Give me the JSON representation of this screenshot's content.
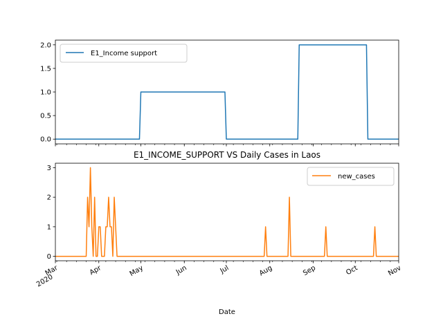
{
  "chart_data": [
    {
      "type": "line",
      "title": "",
      "xlabel": "",
      "ylabel": "",
      "x_range": [
        "2020-03-01",
        "2020-11-01"
      ],
      "ylim": [
        -0.1,
        2.1
      ],
      "yticks": [
        "0.0",
        "0.5",
        "1.0",
        "1.5",
        "2.0"
      ],
      "grid": false,
      "legend": "upper left",
      "series": [
        {
          "name": "E1_Income support",
          "color": "#1f77b4",
          "points": [
            [
              "2020-03-01",
              0
            ],
            [
              "2020-04-30",
              0
            ],
            [
              "2020-05-01",
              1
            ],
            [
              "2020-06-30",
              1
            ],
            [
              "2020-07-01",
              0
            ],
            [
              "2020-08-21",
              0
            ],
            [
              "2020-08-22",
              2
            ],
            [
              "2020-10-09",
              2
            ],
            [
              "2020-10-10",
              0
            ],
            [
              "2020-11-01",
              0
            ]
          ]
        }
      ]
    },
    {
      "type": "line",
      "title": "E1_INCOME_SUPPORT VS Daily Cases in Laos",
      "xlabel": "Date",
      "ylabel": "",
      "x_range": [
        "2020-03-01",
        "2020-11-01"
      ],
      "ylim": [
        -0.15,
        3.15
      ],
      "yticks": [
        "0",
        "1",
        "2",
        "3"
      ],
      "xticks": [
        {
          "date": "2020-03-01",
          "label": "Mar",
          "sub": "2020"
        },
        {
          "date": "2020-04-01",
          "label": "Apr",
          "sub": ""
        },
        {
          "date": "2020-05-01",
          "label": "May",
          "sub": ""
        },
        {
          "date": "2020-06-01",
          "label": "Jun",
          "sub": ""
        },
        {
          "date": "2020-07-01",
          "label": "Jul",
          "sub": ""
        },
        {
          "date": "2020-08-01",
          "label": "Aug",
          "sub": ""
        },
        {
          "date": "2020-09-01",
          "label": "Sep",
          "sub": ""
        },
        {
          "date": "2020-10-01",
          "label": "Oct",
          "sub": ""
        },
        {
          "date": "2020-11-01",
          "label": "Nov",
          "sub": ""
        }
      ],
      "grid": false,
      "legend": "upper right",
      "series": [
        {
          "name": "new_cases",
          "color": "#ff7f0e",
          "points": [
            [
              "2020-03-01",
              0
            ],
            [
              "2020-03-23",
              0
            ],
            [
              "2020-03-24",
              2
            ],
            [
              "2020-03-25",
              1
            ],
            [
              "2020-03-26",
              3
            ],
            [
              "2020-03-27",
              1
            ],
            [
              "2020-03-28",
              0
            ],
            [
              "2020-03-29",
              2
            ],
            [
              "2020-03-30",
              0
            ],
            [
              "2020-03-31",
              0
            ],
            [
              "2020-04-01",
              1
            ],
            [
              "2020-04-02",
              1
            ],
            [
              "2020-04-03",
              0
            ],
            [
              "2020-04-04",
              0
            ],
            [
              "2020-04-05",
              0
            ],
            [
              "2020-04-06",
              1
            ],
            [
              "2020-04-07",
              1
            ],
            [
              "2020-04-08",
              2
            ],
            [
              "2020-04-09",
              1
            ],
            [
              "2020-04-10",
              1
            ],
            [
              "2020-04-11",
              0
            ],
            [
              "2020-04-12",
              2
            ],
            [
              "2020-04-13",
              1
            ],
            [
              "2020-04-14",
              0
            ],
            [
              "2020-07-28",
              0
            ],
            [
              "2020-07-29",
              1
            ],
            [
              "2020-07-30",
              0
            ],
            [
              "2020-08-14",
              0
            ],
            [
              "2020-08-15",
              2
            ],
            [
              "2020-08-16",
              0
            ],
            [
              "2020-09-09",
              0
            ],
            [
              "2020-09-10",
              1
            ],
            [
              "2020-09-11",
              0
            ],
            [
              "2020-10-14",
              0
            ],
            [
              "2020-10-15",
              1
            ],
            [
              "2020-10-16",
              0
            ],
            [
              "2020-11-01",
              0
            ]
          ]
        }
      ]
    }
  ]
}
